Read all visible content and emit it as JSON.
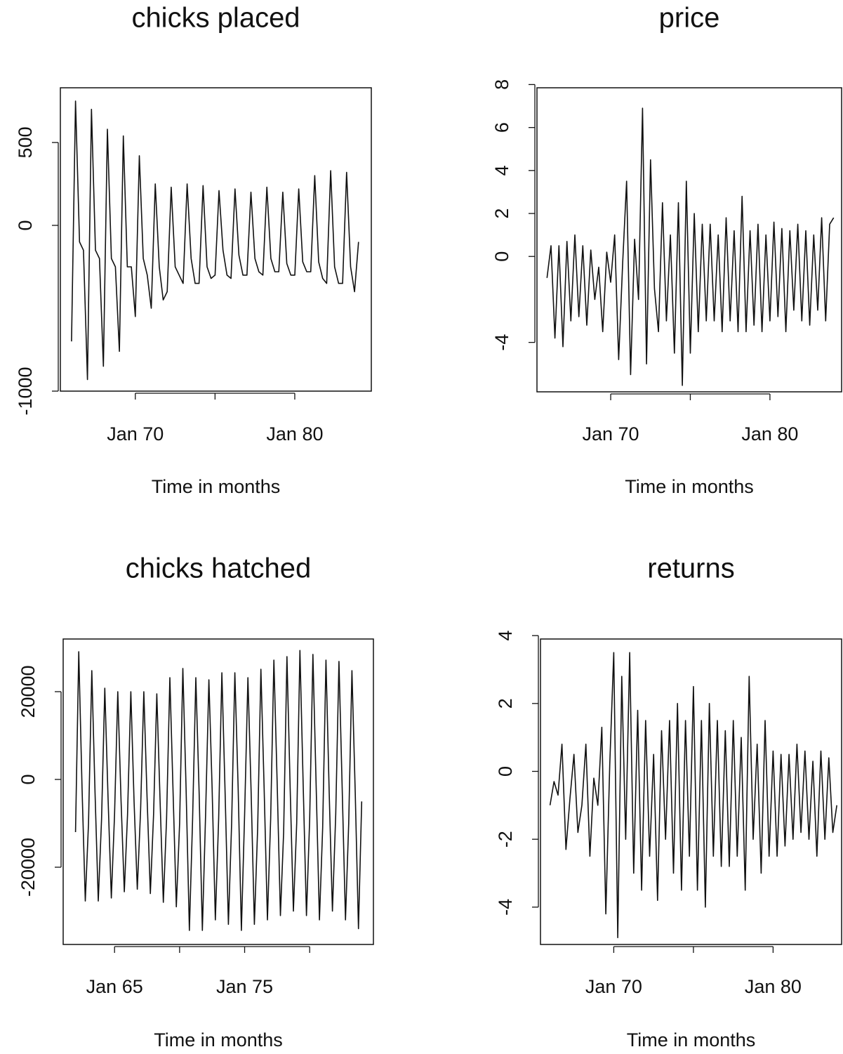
{
  "chart_data": [
    {
      "type": "line",
      "title": "chicks placed",
      "xlabel": "Time in months",
      "color": "#111111",
      "x": [
        1966,
        1966.25,
        1966.5,
        1966.75,
        1967,
        1967.25,
        1967.5,
        1967.75,
        1968,
        1968.25,
        1968.5,
        1968.75,
        1969,
        1969.25,
        1969.5,
        1969.75,
        1970,
        1970.25,
        1970.5,
        1970.75,
        1971,
        1971.25,
        1971.5,
        1971.75,
        1972,
        1972.25,
        1972.5,
        1972.75,
        1973,
        1973.25,
        1973.5,
        1973.75,
        1974,
        1974.25,
        1974.5,
        1974.75,
        1975,
        1975.25,
        1975.5,
        1975.75,
        1976,
        1976.25,
        1976.5,
        1976.75,
        1977,
        1977.25,
        1977.5,
        1977.75,
        1978,
        1978.25,
        1978.5,
        1978.75,
        1979,
        1979.25,
        1979.5,
        1979.75,
        1980,
        1980.25,
        1980.5,
        1980.75,
        1981,
        1981.25,
        1981.5,
        1981.75,
        1982,
        1982.25,
        1982.5,
        1982.75,
        1983,
        1983.25,
        1983.5,
        1983.75,
        1984
      ],
      "values": [
        -700,
        750,
        -100,
        -150,
        -930,
        700,
        -150,
        -200,
        -850,
        580,
        -200,
        -250,
        -760,
        540,
        -250,
        -250,
        -550,
        420,
        -200,
        -300,
        -500,
        250,
        -250,
        -450,
        -400,
        230,
        -250,
        -300,
        -350,
        250,
        -200,
        -350,
        -350,
        240,
        -250,
        -320,
        -300,
        210,
        -150,
        -300,
        -320,
        220,
        -180,
        -300,
        -300,
        200,
        -200,
        -280,
        -300,
        230,
        -200,
        -280,
        -280,
        200,
        -230,
        -300,
        -300,
        220,
        -220,
        -280,
        -280,
        300,
        -220,
        -320,
        -350,
        330,
        -250,
        -350,
        -350,
        320,
        -250,
        -400,
        -100
      ],
      "xlim": [
        1965.3,
        1984.8
      ],
      "ylim": [
        -1000,
        830
      ],
      "xticks": [
        {
          "value": 1970,
          "label": "Jan 70"
        },
        {
          "value": 1975,
          "label": null
        },
        {
          "value": 1980,
          "label": "Jan 80"
        }
      ],
      "yticks": [
        -1000,
        0,
        500
      ]
    },
    {
      "type": "line",
      "title": "price",
      "xlabel": "Time in months",
      "color": "#111111",
      "x": [
        1966,
        1966.25,
        1966.5,
        1966.75,
        1967,
        1967.25,
        1967.5,
        1967.75,
        1968,
        1968.25,
        1968.5,
        1968.75,
        1969,
        1969.25,
        1969.5,
        1969.75,
        1970,
        1970.25,
        1970.5,
        1970.75,
        1971,
        1971.25,
        1971.5,
        1971.75,
        1972,
        1972.25,
        1972.5,
        1972.75,
        1973,
        1973.25,
        1973.5,
        1973.75,
        1974,
        1974.25,
        1974.5,
        1974.75,
        1975,
        1975.25,
        1975.5,
        1975.75,
        1976,
        1976.25,
        1976.5,
        1976.75,
        1977,
        1977.25,
        1977.5,
        1977.75,
        1978,
        1978.25,
        1978.5,
        1978.75,
        1979,
        1979.25,
        1979.5,
        1979.75,
        1980,
        1980.25,
        1980.5,
        1980.75,
        1981,
        1981.25,
        1981.5,
        1981.75,
        1982,
        1982.25,
        1982.5,
        1982.75,
        1983,
        1983.25,
        1983.5,
        1983.75,
        1984
      ],
      "values": [
        -1,
        0.5,
        -3.8,
        0.5,
        -4.2,
        0.7,
        -3,
        1,
        -2.8,
        0.5,
        -3.2,
        0.3,
        -2,
        -0.5,
        -3.5,
        0.2,
        -1.2,
        1,
        -4.8,
        -0.3,
        3.5,
        -5.5,
        0.8,
        -2,
        6.9,
        -5,
        4.5,
        -1.5,
        -3.5,
        2.5,
        -3,
        1,
        -4.5,
        2.5,
        -6,
        3.5,
        -4.5,
        2,
        -3.5,
        1.5,
        -3,
        1.5,
        -3,
        1,
        -3.5,
        1.8,
        -3,
        1.2,
        -3.5,
        2.8,
        -3.5,
        1.2,
        -3.2,
        1.5,
        -3.5,
        1,
        -3,
        1.6,
        -2.8,
        1.3,
        -3.5,
        1.2,
        -2.5,
        1.5,
        -3,
        1.2,
        -3.2,
        1,
        -2.5,
        1.8,
        -3,
        1.5,
        1.8
      ],
      "xlim": [
        1965.37,
        1984.5
      ],
      "ylim": [
        -6.3,
        7.85
      ],
      "xticks": [
        {
          "value": 1970,
          "label": "Jan 70"
        },
        {
          "value": 1975,
          "label": null
        },
        {
          "value": 1980,
          "label": "Jan 80"
        }
      ],
      "yticks": [
        -4,
        0,
        2,
        4,
        6,
        8
      ]
    },
    {
      "type": "line",
      "title": "chicks hatched",
      "xlabel": "Time in months",
      "color": "#111111",
      "x": [
        1962,
        1962.25,
        1962.5,
        1962.75,
        1963,
        1963.25,
        1963.5,
        1963.75,
        1964,
        1964.25,
        1964.5,
        1964.75,
        1965,
        1965.25,
        1965.5,
        1965.75,
        1966,
        1966.25,
        1966.5,
        1966.75,
        1967,
        1967.25,
        1967.5,
        1967.75,
        1968,
        1968.25,
        1968.5,
        1968.75,
        1969,
        1969.25,
        1969.5,
        1969.75,
        1970,
        1970.25,
        1970.5,
        1970.75,
        1971,
        1971.25,
        1971.5,
        1971.75,
        1972,
        1972.25,
        1972.5,
        1972.75,
        1973,
        1973.25,
        1973.5,
        1973.75,
        1974,
        1974.25,
        1974.5,
        1974.75,
        1975,
        1975.25,
        1975.5,
        1975.75,
        1976,
        1976.25,
        1976.5,
        1976.75,
        1977,
        1977.25,
        1977.5,
        1977.75,
        1978,
        1978.25,
        1978.5,
        1978.75,
        1979,
        1979.25,
        1979.5,
        1979.75,
        1980,
        1980.25,
        1980.5,
        1980.75,
        1981,
        1981.25,
        1981.5,
        1981.75,
        1982,
        1982.25,
        1982.5,
        1982.75,
        1983,
        1983.25,
        1983.5,
        1983.75,
        1984
      ],
      "values": [
        -12000,
        29100,
        -2000,
        -27700,
        -10000,
        24800,
        -3000,
        -27700,
        -9000,
        20800,
        -4000,
        -27000,
        -8000,
        20000,
        -5000,
        -25600,
        -8000,
        20000,
        -5000,
        -25000,
        -7000,
        20000,
        -4000,
        -26000,
        -8000,
        19500,
        -5000,
        -28000,
        -9000,
        23200,
        -3000,
        -29000,
        -10000,
        25300,
        -2000,
        -34400,
        -9000,
        23200,
        -3000,
        -34400,
        -8000,
        22700,
        -2000,
        -32000,
        -9000,
        24300,
        -3000,
        -33000,
        -10000,
        24300,
        -2000,
        -34400,
        -8000,
        23200,
        -3000,
        -33000,
        -11000,
        25100,
        -2000,
        -32000,
        -9000,
        27200,
        -1000,
        -31000,
        -12000,
        28000,
        -2000,
        -30000,
        -10000,
        29400,
        -1000,
        -31000,
        -9000,
        28500,
        -2000,
        -32000,
        -11000,
        27200,
        -3000,
        -30000,
        -8000,
        26900,
        -2000,
        -32000,
        -10000,
        24800,
        -3000,
        -34000,
        -5000
      ],
      "xlim": [
        1961.05,
        1984.9
      ],
      "ylim": [
        -37600,
        32000
      ],
      "xticks": [
        {
          "value": 1965,
          "label": "Jan 65"
        },
        {
          "value": 1970,
          "label": null
        },
        {
          "value": 1975,
          "label": "Jan 75"
        },
        {
          "value": 1980,
          "label": null
        }
      ],
      "yticks": [
        -20000,
        0,
        20000
      ]
    },
    {
      "type": "line",
      "title": "returns",
      "xlabel": "Time in months",
      "color": "#111111",
      "x": [
        1966,
        1966.25,
        1966.5,
        1966.75,
        1967,
        1967.25,
        1967.5,
        1967.75,
        1968,
        1968.25,
        1968.5,
        1968.75,
        1969,
        1969.25,
        1969.5,
        1969.75,
        1970,
        1970.25,
        1970.5,
        1970.75,
        1971,
        1971.25,
        1971.5,
        1971.75,
        1972,
        1972.25,
        1972.5,
        1972.75,
        1973,
        1973.25,
        1973.5,
        1973.75,
        1974,
        1974.25,
        1974.5,
        1974.75,
        1975,
        1975.25,
        1975.5,
        1975.75,
        1976,
        1976.25,
        1976.5,
        1976.75,
        1977,
        1977.25,
        1977.5,
        1977.75,
        1978,
        1978.25,
        1978.5,
        1978.75,
        1979,
        1979.25,
        1979.5,
        1979.75,
        1980,
        1980.25,
        1980.5,
        1980.75,
        1981,
        1981.25,
        1981.5,
        1981.75,
        1982,
        1982.25,
        1982.5,
        1982.75,
        1983,
        1983.25,
        1983.5,
        1983.75,
        1984
      ],
      "values": [
        -1,
        -0.3,
        -0.7,
        0.8,
        -2.3,
        -0.8,
        0.5,
        -1.8,
        -1,
        0.8,
        -2.5,
        -0.2,
        -1,
        1.3,
        -4.2,
        0.2,
        3.5,
        -4.9,
        2.8,
        -2,
        3.5,
        -3,
        1.8,
        -3.5,
        1.5,
        -2.5,
        0.5,
        -3.8,
        1.2,
        -2,
        1.5,
        -3,
        2,
        -3.5,
        1.5,
        -2.5,
        2.5,
        -3.5,
        1.5,
        -4,
        2,
        -2.5,
        1.5,
        -2.8,
        1.2,
        -2.8,
        1.5,
        -2.5,
        1,
        -3.5,
        2.8,
        -2,
        0.8,
        -3,
        1.5,
        -2.5,
        0.6,
        -2.5,
        0.5,
        -2.2,
        0.5,
        -2,
        0.8,
        -1.8,
        0.6,
        -2,
        0.3,
        -2.5,
        0.6,
        -2,
        0.4,
        -1.8,
        -1
      ],
      "xlim": [
        1965.4,
        1984.3
      ],
      "ylim": [
        -5.1,
        3.9
      ],
      "xticks": [
        {
          "value": 1970,
          "label": "Jan 70"
        },
        {
          "value": 1975,
          "label": null
        },
        {
          "value": 1980,
          "label": "Jan 80"
        }
      ],
      "yticks": [
        -4,
        -2,
        0,
        2,
        4
      ]
    }
  ]
}
